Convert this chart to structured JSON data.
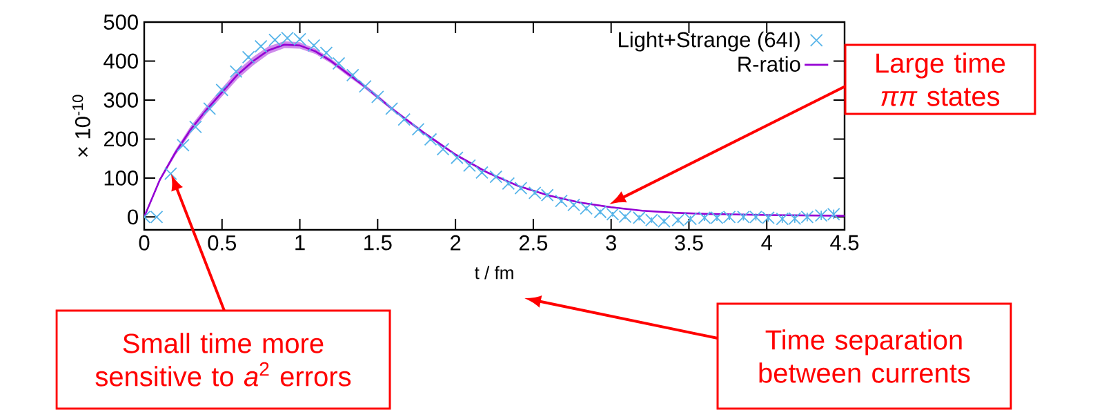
{
  "chart_data": {
    "type": "scatter",
    "xlabel": "t / fm",
    "ylabel": "× 10$^{-10}$",
    "xlim": [
      0,
      4.5
    ],
    "ylim": [
      -33,
      500
    ],
    "xticks": [
      0,
      0.5,
      1,
      1.5,
      2,
      2.5,
      3,
      3.5,
      4,
      4.5
    ],
    "yticks": [
      0,
      100,
      200,
      300,
      400,
      500
    ],
    "legend": "top right",
    "grid": false,
    "series": [
      {
        "name": "Light+Strange (64I)",
        "type": "scatter",
        "marker": "cross",
        "color": "#56b4e9",
        "x": [
          0,
          0.08,
          0.17,
          0.25,
          0.33,
          0.42,
          0.5,
          0.59,
          0.67,
          0.75,
          0.84,
          0.92,
          1.0,
          1.09,
          1.17,
          1.25,
          1.34,
          1.42,
          1.5,
          1.59,
          1.67,
          1.76,
          1.84,
          1.92,
          2.01,
          2.09,
          2.17,
          2.26,
          2.34,
          2.42,
          2.51,
          2.59,
          2.68,
          2.76,
          2.84,
          2.93,
          3.01,
          3.09,
          3.18,
          3.26,
          3.34,
          3.43,
          3.51,
          3.6,
          3.68,
          3.76,
          3.85,
          3.93,
          4.01,
          4.1,
          4.18,
          4.26,
          4.35,
          4.43
        ],
        "values": [
          0,
          0,
          111,
          184,
          231,
          278,
          326,
          373,
          410,
          438,
          454,
          459,
          456,
          440,
          421,
          394,
          364,
          335,
          308,
          278,
          250,
          225,
          199,
          174,
          152,
          132,
          114,
          103,
          86,
          74,
          62,
          56,
          41,
          31,
          22,
          13,
          7,
          1,
          -2,
          -8,
          -11,
          -8,
          -5,
          -2,
          -2,
          0,
          0,
          0,
          -2,
          -5,
          -4,
          0,
          4,
          7
        ],
        "errors": [
          null,
          null,
          3,
          3,
          3,
          3,
          4,
          4,
          4,
          4,
          4,
          4,
          4,
          4,
          4,
          4,
          4,
          4,
          4,
          4,
          4,
          4,
          4,
          4,
          4,
          4,
          4,
          4,
          5,
          5,
          5,
          5,
          5,
          5,
          6,
          6,
          6,
          6,
          7,
          7,
          7,
          7,
          8,
          8,
          8,
          8,
          9,
          9,
          10,
          10,
          11,
          11,
          12,
          12
        ]
      },
      {
        "name": "R-ratio",
        "type": "line",
        "marker": "none",
        "line_style": "solid",
        "color": "#9400d3",
        "x": [
          0,
          0.1,
          0.2,
          0.3,
          0.4,
          0.5,
          0.6,
          0.7,
          0.8,
          0.9,
          1.0,
          1.1,
          1.2,
          1.3,
          1.4,
          1.5,
          1.6,
          1.8,
          2.0,
          2.2,
          2.4,
          2.6,
          2.8,
          3.0,
          3.2,
          3.4,
          3.6,
          4.0,
          4.5
        ],
        "values": [
          0,
          95,
          165,
          225,
          275,
          320,
          365,
          400,
          428,
          442,
          440,
          425,
          400,
          370,
          340,
          308,
          275,
          215,
          160,
          115,
          80,
          55,
          37,
          25,
          16,
          11,
          8,
          5,
          3
        ],
        "lower": [
          0,
          91,
          158,
          216,
          265,
          309,
          354,
          389,
          418,
          433,
          432,
          418,
          394,
          364,
          335,
          303,
          271,
          211,
          157,
          112,
          78,
          53,
          35,
          23,
          15,
          10,
          7,
          4,
          2
        ],
        "upper": [
          0,
          99,
          172,
          234,
          285,
          331,
          376,
          411,
          438,
          451,
          448,
          432,
          406,
          376,
          345,
          313,
          279,
          219,
          163,
          118,
          82,
          57,
          39,
          27,
          17,
          12,
          9,
          6,
          4
        ]
      }
    ],
    "annotations": [
      "Large time *ππ* states",
      "Small time more sensitive to *a*$^{2}$ errors",
      "Time separation between currents"
    ]
  }
}
